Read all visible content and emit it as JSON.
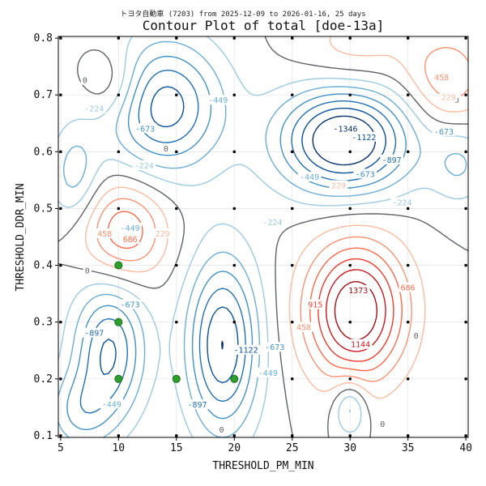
{
  "chart_data": {
    "type": "contour",
    "suptitle": "トヨタ自動車 (7203) from 2025-12-09 to 2026-01-16, 25 days",
    "title": "Contour Plot of total [doe-13a]",
    "xlabel": "THRESHOLD_PM_MIN",
    "ylabel": "THRESHOLD_DDR_MIN",
    "xlim": [
      4.8,
      40.2
    ],
    "ylim": [
      0.097,
      0.803
    ],
    "x_ticks": [
      "5",
      "10",
      "15",
      "20",
      "25",
      "30",
      "35",
      "40"
    ],
    "y_ticks": [
      "0.1",
      "0.2",
      "0.3",
      "0.4",
      "0.5",
      "0.6",
      "0.7",
      "0.8"
    ],
    "grid": true,
    "contour_levels": [
      -1346,
      -1122,
      -897,
      -673,
      -449,
      -224,
      0,
      229,
      458,
      686,
      915,
      1144,
      1373
    ],
    "level_labels": [
      {
        "x": 29.6,
        "y": 0.64,
        "text": "-1346"
      },
      {
        "x": 31.2,
        "y": 0.625,
        "text": "-1122"
      },
      {
        "x": 21.0,
        "y": 0.25,
        "text": "-1122"
      },
      {
        "x": 7.9,
        "y": 0.28,
        "text": "-897"
      },
      {
        "x": 16.8,
        "y": 0.154,
        "text": "-897"
      },
      {
        "x": 33.6,
        "y": 0.585,
        "text": "-897"
      },
      {
        "x": 31.3,
        "y": 0.56,
        "text": "-673"
      },
      {
        "x": 38.1,
        "y": 0.635,
        "text": "-673"
      },
      {
        "x": 12.3,
        "y": 0.64,
        "text": "-673"
      },
      {
        "x": 11.0,
        "y": 0.33,
        "text": "-673"
      },
      {
        "x": 23.5,
        "y": 0.255,
        "text": "-673"
      },
      {
        "x": 11.0,
        "y": 0.465,
        "text": "-449"
      },
      {
        "x": 9.4,
        "y": 0.155,
        "text": "-449"
      },
      {
        "x": 18.6,
        "y": 0.69,
        "text": "-449"
      },
      {
        "x": 26.5,
        "y": 0.555,
        "text": "-449"
      },
      {
        "x": 22.9,
        "y": 0.21,
        "text": "-449"
      },
      {
        "x": 12.2,
        "y": 0.575,
        "text": "-224"
      },
      {
        "x": 34.5,
        "y": 0.51,
        "text": "-224"
      },
      {
        "x": 23.3,
        "y": 0.475,
        "text": "-224"
      },
      {
        "x": 7.9,
        "y": 0.675,
        "text": "-224"
      },
      {
        "x": 14.1,
        "y": 0.605,
        "text": "0"
      },
      {
        "x": 7.3,
        "y": 0.39,
        "text": "0"
      },
      {
        "x": 35.7,
        "y": 0.275,
        "text": "0"
      },
      {
        "x": 32.8,
        "y": 0.12,
        "text": "0"
      },
      {
        "x": 18.9,
        "y": 0.11,
        "text": "0"
      },
      {
        "x": 7.1,
        "y": 0.725,
        "text": "0"
      },
      {
        "x": 39.2,
        "y": 0.69,
        "text": "0"
      },
      {
        "x": 13.8,
        "y": 0.455,
        "text": "229"
      },
      {
        "x": 29.0,
        "y": 0.54,
        "text": "229"
      },
      {
        "x": 38.5,
        "y": 0.695,
        "text": "229"
      },
      {
        "x": 8.8,
        "y": 0.455,
        "text": "458"
      },
      {
        "x": 26.0,
        "y": 0.29,
        "text": "458"
      },
      {
        "x": 37.9,
        "y": 0.73,
        "text": "458"
      },
      {
        "x": 11.0,
        "y": 0.445,
        "text": "686"
      },
      {
        "x": 35.0,
        "y": 0.36,
        "text": "686"
      },
      {
        "x": 27.0,
        "y": 0.33,
        "text": "915"
      },
      {
        "x": 30.9,
        "y": 0.26,
        "text": "1144"
      },
      {
        "x": 30.7,
        "y": 0.355,
        "text": "1373"
      }
    ],
    "design_points": [
      {
        "x": 5,
        "y": 0.1
      },
      {
        "x": 5,
        "y": 0.2
      },
      {
        "x": 5,
        "y": 0.3
      },
      {
        "x": 5,
        "y": 0.4
      },
      {
        "x": 5,
        "y": 0.5
      },
      {
        "x": 5,
        "y": 0.6
      },
      {
        "x": 5,
        "y": 0.7
      },
      {
        "x": 5,
        "y": 0.8
      },
      {
        "x": 10,
        "y": 0.1
      },
      {
        "x": 10,
        "y": 0.5
      },
      {
        "x": 10,
        "y": 0.6
      },
      {
        "x": 10,
        "y": 0.7
      },
      {
        "x": 10,
        "y": 0.8
      },
      {
        "x": 15,
        "y": 0.1
      },
      {
        "x": 15,
        "y": 0.3
      },
      {
        "x": 15,
        "y": 0.4
      },
      {
        "x": 15,
        "y": 0.5
      },
      {
        "x": 15,
        "y": 0.6
      },
      {
        "x": 15,
        "y": 0.7
      },
      {
        "x": 15,
        "y": 0.8
      },
      {
        "x": 20,
        "y": 0.1
      },
      {
        "x": 20,
        "y": 0.3
      },
      {
        "x": 20,
        "y": 0.4
      },
      {
        "x": 20,
        "y": 0.5
      },
      {
        "x": 20,
        "y": 0.6
      },
      {
        "x": 20,
        "y": 0.7
      },
      {
        "x": 20,
        "y": 0.8
      },
      {
        "x": 25,
        "y": 0.1
      },
      {
        "x": 25,
        "y": 0.2
      },
      {
        "x": 25,
        "y": 0.3
      },
      {
        "x": 25,
        "y": 0.4
      },
      {
        "x": 25,
        "y": 0.5
      },
      {
        "x": 25,
        "y": 0.6
      },
      {
        "x": 25,
        "y": 0.7
      },
      {
        "x": 25,
        "y": 0.8
      },
      {
        "x": 30,
        "y": 0.1
      },
      {
        "x": 30,
        "y": 0.2
      },
      {
        "x": 30,
        "y": 0.3
      },
      {
        "x": 30,
        "y": 0.4
      },
      {
        "x": 30,
        "y": 0.5
      },
      {
        "x": 30,
        "y": 0.6
      },
      {
        "x": 30,
        "y": 0.7
      },
      {
        "x": 30,
        "y": 0.8
      },
      {
        "x": 35,
        "y": 0.1
      },
      {
        "x": 35,
        "y": 0.2
      },
      {
        "x": 35,
        "y": 0.3
      },
      {
        "x": 35,
        "y": 0.4
      },
      {
        "x": 35,
        "y": 0.5
      },
      {
        "x": 35,
        "y": 0.6
      },
      {
        "x": 35,
        "y": 0.7
      },
      {
        "x": 35,
        "y": 0.8
      },
      {
        "x": 40,
        "y": 0.1
      },
      {
        "x": 40,
        "y": 0.2
      },
      {
        "x": 40,
        "y": 0.3
      },
      {
        "x": 40,
        "y": 0.4
      },
      {
        "x": 40,
        "y": 0.5
      },
      {
        "x": 40,
        "y": 0.6
      },
      {
        "x": 40,
        "y": 0.7
      },
      {
        "x": 40,
        "y": 0.8
      }
    ],
    "highlighted_points": [
      {
        "x": 10,
        "y": 0.4
      },
      {
        "x": 10,
        "y": 0.3
      },
      {
        "x": 10,
        "y": 0.2
      },
      {
        "x": 15,
        "y": 0.2
      },
      {
        "x": 20,
        "y": 0.2
      }
    ],
    "field_bumps": [
      {
        "x": 30.5,
        "y": 0.32,
        "amp": 1650,
        "sx": 3.0,
        "sy": 0.085
      },
      {
        "x": 10.5,
        "y": 0.46,
        "amp": 900,
        "sx": 2.5,
        "sy": 0.06
      },
      {
        "x": 38.5,
        "y": 0.73,
        "amp": 650,
        "sx": 2.5,
        "sy": 0.06
      },
      {
        "x": 9.5,
        "y": 0.72,
        "amp": 450,
        "sx": 1.8,
        "sy": 0.045
      },
      {
        "x": 30.5,
        "y": 0.78,
        "amp": 350,
        "sx": 3.5,
        "sy": 0.05
      },
      {
        "x": 29.5,
        "y": 0.62,
        "amp": -1700,
        "sx": 4.0,
        "sy": 0.065
      },
      {
        "x": 14.0,
        "y": 0.68,
        "amp": -1250,
        "sx": 3.5,
        "sy": 0.08
      },
      {
        "x": 19.0,
        "y": 0.26,
        "amp": -1350,
        "sx": 2.2,
        "sy": 0.11
      },
      {
        "x": 9.2,
        "y": 0.25,
        "amp": -1150,
        "sx": 2.2,
        "sy": 0.085
      },
      {
        "x": 6.2,
        "y": 0.56,
        "amp": -550,
        "sx": 1.5,
        "sy": 0.06
      },
      {
        "x": 6.5,
        "y": 0.14,
        "amp": -600,
        "sx": 2.0,
        "sy": 0.05
      },
      {
        "x": 30.0,
        "y": 0.15,
        "amp": -650,
        "sx": 1.0,
        "sy": 0.035
      },
      {
        "x": 39.5,
        "y": 0.58,
        "amp": -450,
        "sx": 1.8,
        "sy": 0.05
      }
    ],
    "colors": {
      "background": "#ffffff",
      "zero_line": "#5f6368",
      "negative": [
        "#08306b",
        "#08519c",
        "#2171b5",
        "#4292c6",
        "#6baed6",
        "#9ecae1"
      ],
      "positive": [
        "#fcbba1",
        "#fc9272",
        "#fb6a4a",
        "#ef3b2c",
        "#cb181d",
        "#a50f15"
      ],
      "highlight_fill": "#2ca02c",
      "highlight_edge": "#1a6b1a",
      "design_point": "#000000",
      "grid": "#e6e6e6"
    }
  }
}
